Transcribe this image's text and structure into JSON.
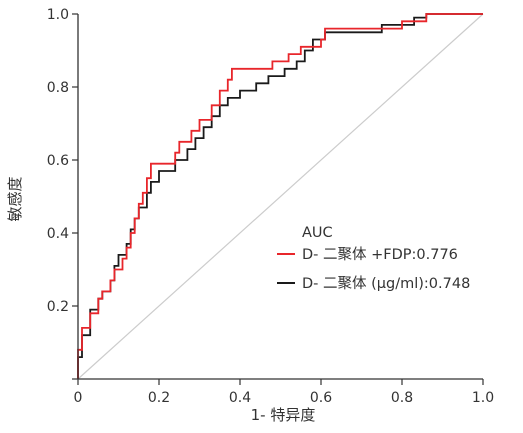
{
  "chart_data": {
    "type": "line",
    "title": "",
    "xlabel": "1- 特异度",
    "ylabel": "敏感度",
    "xlim": [
      0,
      1
    ],
    "ylim": [
      0,
      1
    ],
    "x_ticks": [
      "0",
      "0.2",
      "0.4",
      "0.6",
      "0.8",
      "1.0"
    ],
    "y_ticks": [
      "0",
      "0.2",
      "0.4",
      "0.6",
      "0.8",
      "1.0"
    ],
    "x_tick_values": [
      0,
      0.2,
      0.4,
      0.6,
      0.8,
      1.0
    ],
    "y_tick_values": [
      0,
      0.2,
      0.4,
      0.6,
      0.8,
      1.0
    ],
    "grid": false,
    "legend": {
      "title": "AUC",
      "placement": "center-right"
    },
    "series": [
      {
        "name": "D- 二聚体 +FDP:0.776",
        "color": "#e8262b",
        "points": [
          [
            0,
            0
          ],
          [
            0,
            0.08
          ],
          [
            0.01,
            0.08
          ],
          [
            0.01,
            0.14
          ],
          [
            0.03,
            0.14
          ],
          [
            0.03,
            0.18
          ],
          [
            0.05,
            0.18
          ],
          [
            0.05,
            0.22
          ],
          [
            0.06,
            0.22
          ],
          [
            0.06,
            0.24
          ],
          [
            0.08,
            0.24
          ],
          [
            0.08,
            0.27
          ],
          [
            0.09,
            0.27
          ],
          [
            0.09,
            0.3
          ],
          [
            0.11,
            0.3
          ],
          [
            0.11,
            0.33
          ],
          [
            0.12,
            0.33
          ],
          [
            0.12,
            0.36
          ],
          [
            0.13,
            0.36
          ],
          [
            0.13,
            0.4
          ],
          [
            0.14,
            0.4
          ],
          [
            0.14,
            0.44
          ],
          [
            0.15,
            0.44
          ],
          [
            0.15,
            0.48
          ],
          [
            0.16,
            0.48
          ],
          [
            0.16,
            0.51
          ],
          [
            0.17,
            0.51
          ],
          [
            0.17,
            0.55
          ],
          [
            0.18,
            0.55
          ],
          [
            0.18,
            0.59
          ],
          [
            0.24,
            0.59
          ],
          [
            0.24,
            0.62
          ],
          [
            0.25,
            0.62
          ],
          [
            0.25,
            0.65
          ],
          [
            0.28,
            0.65
          ],
          [
            0.28,
            0.68
          ],
          [
            0.3,
            0.68
          ],
          [
            0.3,
            0.71
          ],
          [
            0.33,
            0.71
          ],
          [
            0.33,
            0.75
          ],
          [
            0.35,
            0.75
          ],
          [
            0.35,
            0.79
          ],
          [
            0.37,
            0.79
          ],
          [
            0.37,
            0.82
          ],
          [
            0.38,
            0.82
          ],
          [
            0.38,
            0.85
          ],
          [
            0.48,
            0.85
          ],
          [
            0.48,
            0.87
          ],
          [
            0.52,
            0.87
          ],
          [
            0.52,
            0.89
          ],
          [
            0.55,
            0.89
          ],
          [
            0.55,
            0.91
          ],
          [
            0.6,
            0.91
          ],
          [
            0.6,
            0.93
          ],
          [
            0.61,
            0.93
          ],
          [
            0.61,
            0.96
          ],
          [
            0.8,
            0.96
          ],
          [
            0.8,
            0.98
          ],
          [
            0.86,
            0.98
          ],
          [
            0.86,
            1.0
          ],
          [
            1.0,
            1.0
          ]
        ]
      },
      {
        "name": "D- 二聚体 (μg/ml):0.748",
        "color": "#1a1a1a",
        "points": [
          [
            0,
            0
          ],
          [
            0,
            0.06
          ],
          [
            0.01,
            0.06
          ],
          [
            0.01,
            0.12
          ],
          [
            0.03,
            0.12
          ],
          [
            0.03,
            0.19
          ],
          [
            0.05,
            0.19
          ],
          [
            0.05,
            0.22
          ],
          [
            0.06,
            0.22
          ],
          [
            0.06,
            0.24
          ],
          [
            0.08,
            0.24
          ],
          [
            0.08,
            0.27
          ],
          [
            0.09,
            0.27
          ],
          [
            0.09,
            0.31
          ],
          [
            0.1,
            0.31
          ],
          [
            0.1,
            0.34
          ],
          [
            0.12,
            0.34
          ],
          [
            0.12,
            0.37
          ],
          [
            0.13,
            0.37
          ],
          [
            0.13,
            0.41
          ],
          [
            0.14,
            0.41
          ],
          [
            0.14,
            0.44
          ],
          [
            0.15,
            0.44
          ],
          [
            0.15,
            0.47
          ],
          [
            0.17,
            0.47
          ],
          [
            0.17,
            0.51
          ],
          [
            0.18,
            0.51
          ],
          [
            0.18,
            0.54
          ],
          [
            0.2,
            0.54
          ],
          [
            0.2,
            0.57
          ],
          [
            0.24,
            0.57
          ],
          [
            0.24,
            0.6
          ],
          [
            0.27,
            0.6
          ],
          [
            0.27,
            0.63
          ],
          [
            0.29,
            0.63
          ],
          [
            0.29,
            0.66
          ],
          [
            0.31,
            0.66
          ],
          [
            0.31,
            0.69
          ],
          [
            0.33,
            0.69
          ],
          [
            0.33,
            0.72
          ],
          [
            0.35,
            0.72
          ],
          [
            0.35,
            0.75
          ],
          [
            0.37,
            0.75
          ],
          [
            0.37,
            0.77
          ],
          [
            0.4,
            0.77
          ],
          [
            0.4,
            0.79
          ],
          [
            0.44,
            0.79
          ],
          [
            0.44,
            0.81
          ],
          [
            0.47,
            0.81
          ],
          [
            0.47,
            0.83
          ],
          [
            0.51,
            0.83
          ],
          [
            0.51,
            0.85
          ],
          [
            0.54,
            0.85
          ],
          [
            0.54,
            0.87
          ],
          [
            0.56,
            0.87
          ],
          [
            0.56,
            0.9
          ],
          [
            0.58,
            0.9
          ],
          [
            0.58,
            0.93
          ],
          [
            0.61,
            0.93
          ],
          [
            0.61,
            0.95
          ],
          [
            0.75,
            0.95
          ],
          [
            0.75,
            0.97
          ],
          [
            0.83,
            0.97
          ],
          [
            0.83,
            0.99
          ],
          [
            0.86,
            0.99
          ],
          [
            0.86,
            1.0
          ],
          [
            1.0,
            1.0
          ]
        ]
      }
    ],
    "reference_line": {
      "points": [
        [
          0,
          0
        ],
        [
          1,
          1
        ]
      ],
      "color": "#cccccc"
    }
  }
}
